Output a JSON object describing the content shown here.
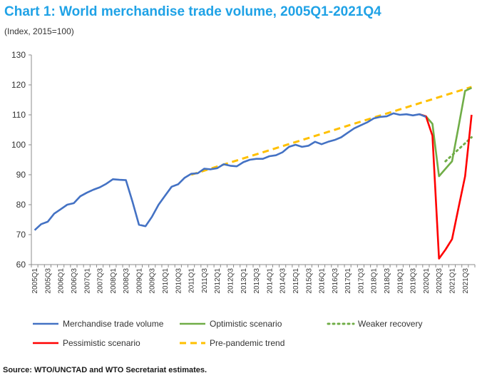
{
  "page": {
    "title": "Chart 1: World merchandise trade volume, 2005Q1-2021Q4",
    "subtitle": "(Index, 2015=100)",
    "source": "Source: WTO/UNCTAD and WTO Secretariat estimates."
  },
  "chart_data": {
    "type": "line",
    "title": "Chart 1: World merchandise trade volume, 2005Q1-2021Q4",
    "subtitle": "(Index, 2015=100)",
    "xlabel": "",
    "ylabel": "",
    "ylim": [
      60,
      130
    ],
    "yticks": [
      60,
      70,
      80,
      90,
      100,
      110,
      120,
      130
    ],
    "grid": false,
    "legend_position": "bottom",
    "quarters": [
      "2005Q1",
      "2005Q2",
      "2005Q3",
      "2005Q4",
      "2006Q1",
      "2006Q2",
      "2006Q3",
      "2006Q4",
      "2007Q1",
      "2007Q2",
      "2007Q3",
      "2007Q4",
      "2008Q1",
      "2008Q2",
      "2008Q3",
      "2008Q4",
      "2009Q1",
      "2009Q2",
      "2009Q3",
      "2009Q4",
      "2010Q1",
      "2010Q2",
      "2010Q3",
      "2010Q4",
      "2011Q1",
      "2011Q2",
      "2011Q3",
      "2011Q4",
      "2012Q1",
      "2012Q2",
      "2012Q3",
      "2012Q4",
      "2013Q1",
      "2013Q2",
      "2013Q3",
      "2013Q4",
      "2014Q1",
      "2014Q2",
      "2014Q3",
      "2014Q4",
      "2015Q1",
      "2015Q2",
      "2015Q3",
      "2015Q4",
      "2016Q1",
      "2016Q2",
      "2016Q3",
      "2016Q4",
      "2017Q1",
      "2017Q2",
      "2017Q3",
      "2017Q4",
      "2018Q1",
      "2018Q2",
      "2018Q3",
      "2018Q4",
      "2019Q1",
      "2019Q2",
      "2019Q3",
      "2019Q4",
      "2020Q1",
      "2020Q2",
      "2020Q3",
      "2020Q4",
      "2021Q1",
      "2021Q2",
      "2021Q3",
      "2021Q4"
    ],
    "tick_labels": [
      "2005Q1",
      "2005Q3",
      "2006Q1",
      "2006Q3",
      "2007Q1",
      "2007Q3",
      "2008Q1",
      "2008Q3",
      "2009Q1",
      "2009Q3",
      "2010Q1",
      "2010Q3",
      "2011Q1",
      "2011Q3",
      "2012Q1",
      "2012Q3",
      "2013Q1",
      "2013Q3",
      "2014Q1",
      "2014Q3",
      "2015Q1",
      "2015Q3",
      "2016Q1",
      "2016Q3",
      "2017Q1",
      "2017Q3",
      "2018Q1",
      "2018Q3",
      "2019Q1",
      "2019Q3",
      "2020Q1",
      "2020Q3",
      "2021Q1",
      "2021Q3"
    ],
    "series": [
      {
        "name": "Merchandise trade volume",
        "color": "#4472c4",
        "style": "solid",
        "x": [
          "2005Q1",
          "2005Q2",
          "2005Q3",
          "2005Q4",
          "2006Q1",
          "2006Q2",
          "2006Q3",
          "2006Q4",
          "2007Q1",
          "2007Q2",
          "2007Q3",
          "2007Q4",
          "2008Q1",
          "2008Q2",
          "2008Q3",
          "2008Q4",
          "2009Q1",
          "2009Q2",
          "2009Q3",
          "2009Q4",
          "2010Q1",
          "2010Q2",
          "2010Q3",
          "2010Q4",
          "2011Q1",
          "2011Q2",
          "2011Q3",
          "2011Q4",
          "2012Q1",
          "2012Q2",
          "2012Q3",
          "2012Q4",
          "2013Q1",
          "2013Q2",
          "2013Q3",
          "2013Q4",
          "2014Q1",
          "2014Q2",
          "2014Q3",
          "2014Q4",
          "2015Q1",
          "2015Q2",
          "2015Q3",
          "2015Q4",
          "2016Q1",
          "2016Q2",
          "2016Q3",
          "2016Q4",
          "2017Q1",
          "2017Q2",
          "2017Q3",
          "2017Q4",
          "2018Q1",
          "2018Q2",
          "2018Q3",
          "2018Q4",
          "2019Q1",
          "2019Q2",
          "2019Q3",
          "2019Q4",
          "2020Q1"
        ],
        "values": [
          71.5,
          73.5,
          74.3,
          77.0,
          78.5,
          80.0,
          80.5,
          82.8,
          84.0,
          85.0,
          85.8,
          87.0,
          88.5,
          88.3,
          88.2,
          81.0,
          73.3,
          72.8,
          76.0,
          80.0,
          83.0,
          86.0,
          86.8,
          89.0,
          90.3,
          90.5,
          92.0,
          91.8,
          92.2,
          93.5,
          93.0,
          92.8,
          94.2,
          95.0,
          95.3,
          95.3,
          96.2,
          96.5,
          97.5,
          99.3,
          100.0,
          99.3,
          99.7,
          101.0,
          100.2,
          101.0,
          101.6,
          102.5,
          104.0,
          105.5,
          106.5,
          107.5,
          108.8,
          109.3,
          109.5,
          110.5,
          110.0,
          110.2,
          109.8,
          110.2,
          109.3
        ]
      },
      {
        "name": "Optimistic scenario",
        "color": "#70ad47",
        "style": "solid",
        "x": [
          "2019Q4",
          "2020Q1",
          "2020Q2",
          "2020Q3",
          "2020Q4",
          "2021Q1",
          "2021Q2",
          "2021Q3",
          "2021Q4"
        ],
        "values": [
          110.2,
          109.5,
          107.0,
          89.5,
          92.0,
          94.5,
          106.0,
          118.0,
          119.0
        ]
      },
      {
        "name": "Weaker recovery",
        "color": "#70ad47",
        "style": "dotted",
        "x": [
          "2020Q4",
          "2021Q1",
          "2021Q2",
          "2021Q3",
          "2021Q4"
        ],
        "values": [
          94.5,
          96.5,
          98.5,
          100.5,
          102.5
        ]
      },
      {
        "name": "Pessimistic scenario",
        "color": "#ff0000",
        "style": "solid",
        "x": [
          "2019Q4",
          "2020Q1",
          "2020Q2",
          "2020Q3",
          "2020Q4",
          "2021Q1",
          "2021Q2",
          "2021Q3",
          "2021Q4"
        ],
        "values": [
          110.2,
          109.5,
          103.0,
          62.0,
          65.0,
          68.5,
          79.0,
          89.5,
          110.0
        ]
      },
      {
        "name": "Pre-pandemic trend",
        "color": "#ffc000",
        "style": "dashed",
        "x": [
          "2011Q1",
          "2021Q4"
        ],
        "values": [
          90.0,
          119.3
        ]
      }
    ]
  }
}
